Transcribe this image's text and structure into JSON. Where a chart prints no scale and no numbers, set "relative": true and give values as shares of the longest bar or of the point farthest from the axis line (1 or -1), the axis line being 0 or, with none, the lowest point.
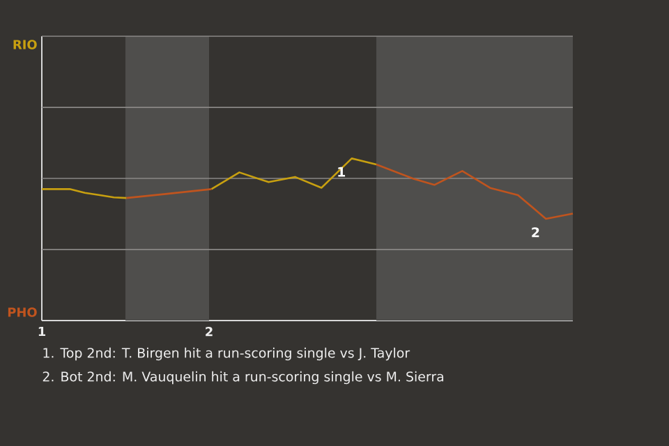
{
  "chart_data": {
    "type": "line",
    "relative": true,
    "xlim": [
      1,
      4.175
    ],
    "xticks": [
      1,
      2
    ],
    "ref_lines": [
      {
        "axis": "y",
        "value": 0.438,
        "color": "#8a8886"
      },
      {
        "axis": "y",
        "value": 0.877,
        "color": "#8a8886"
      },
      {
        "axis": "y",
        "value": 1.315,
        "color": "#8a8886"
      },
      {
        "axis": "y",
        "value": 1.754,
        "color": "#8a8886"
      }
    ],
    "legend": "left",
    "series": [
      {
        "name": "RIO",
        "color": "#c8a010",
        "x": [
          1.0,
          1.167,
          1.258,
          1.347,
          1.431,
          1.506,
          1.75,
          2.014,
          2.181,
          2.356,
          2.514,
          2.672,
          2.853,
          3.0
        ],
        "values": [
          0.811,
          0.811,
          0.788,
          0.774,
          0.76,
          0.756,
          null,
          0.811,
          0.914,
          0.854,
          0.886,
          0.819,
          1,
          0.963
        ]
      },
      {
        "name": "PHO",
        "color": "#c0541e",
        "x": [
          1.506,
          1.75,
          2.014,
          2.5,
          3.0,
          3.222,
          3.347,
          3.514,
          3.681,
          3.847,
          4.014,
          4.175
        ],
        "values": [
          0.756,
          0.782,
          0.811,
          null,
          0.963,
          0.875,
          0.837,
          0.923,
          0.818,
          0.774,
          0.628,
          0.66
        ]
      }
    ],
    "bands": [
      {
        "axis": "x",
        "from": 1.5,
        "to": 2,
        "color": "#4f4e4c"
      },
      {
        "axis": "x",
        "from": 3,
        "to": 4.175,
        "color": "#4f4e4c"
      }
    ],
    "annotations": [
      {
        "text": "1",
        "x": 2.853,
        "y": 1
      },
      {
        "text": "2",
        "x": 4.014,
        "y": 0.628
      },
      "1. Top 2nd: T. Birgen hit a run-scoring single vs J. Taylor",
      "2. Bot 2nd: M. Vauquelin hit a run-scoring single vs M. Sierra"
    ]
  }
}
